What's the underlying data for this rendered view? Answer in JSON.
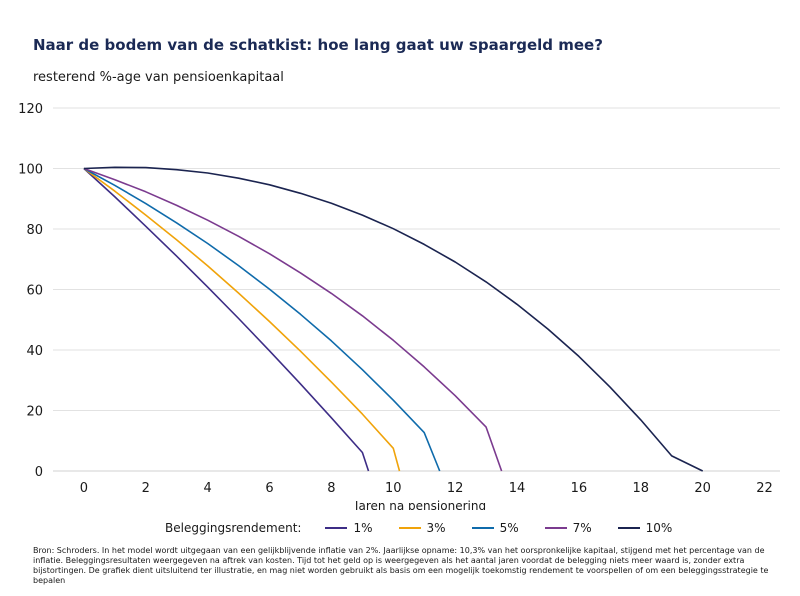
{
  "title": "Naar de bodem van de schatkist: hoe lang gaat uw spaargeld mee?",
  "subtitle": "resterend %-age van pensioenkapitaal",
  "legend_title": "Beleggingsrendement:",
  "source": "Bron: Schroders. In het model wordt uitgegaan van een gelijkblijvende inflatie van 2%. Jaarlijkse opname: 10,3% van het oorspronkelijke kapitaal, stijgend met het percentage van de inflatie. Beleggingsresultaten weergegeven na aftrek van kosten. Tijd tot het geld op is weergegeven als het aantal jaren voordat de belegging niets meer waard is, zonder extra bijstortingen. De grafiek dient uitsluitend ter illustratie, en mag niet worden gebruikt als basis om een mogelijk toekomstig rendement te voorspellen of om een beleggingsstrategie te bepalen",
  "chart_data": {
    "type": "line",
    "title": "Naar de bodem van de schatkist: hoe lang gaat uw spaargeld mee?",
    "ylabel": "resterend %-age van pensioenkapitaal",
    "xlabel": "Jaren na pensionering",
    "xlim": [
      -1,
      22.5
    ],
    "ylim": [
      0,
      120
    ],
    "xticks": [
      0,
      2,
      4,
      6,
      8,
      10,
      12,
      14,
      16,
      18,
      20,
      22
    ],
    "yticks": [
      0,
      20,
      40,
      60,
      80,
      100,
      120
    ],
    "grid": "horizontal",
    "legend_position": "bottom",
    "series": [
      {
        "name": "1%",
        "color": "#3d2d86",
        "x": [
          0,
          1,
          2,
          3,
          4,
          5,
          6,
          7,
          8,
          9,
          9.2
        ],
        "y": [
          100,
          90.6,
          80.9,
          71.0,
          60.8,
          50.4,
          39.7,
          28.8,
          17.6,
          6.1,
          0
        ]
      },
      {
        "name": "3%",
        "color": "#f0a30a",
        "x": [
          0,
          1,
          2,
          3,
          4,
          5,
          6,
          7,
          8,
          9,
          10,
          10.2
        ],
        "y": [
          100,
          92.5,
          84.6,
          76.4,
          67.8,
          58.8,
          49.4,
          39.6,
          29.4,
          18.8,
          7.5,
          0
        ]
      },
      {
        "name": "5%",
        "color": "#0f6bab",
        "x": [
          0,
          1,
          2,
          3,
          4,
          5,
          6,
          7,
          8,
          9,
          10,
          11,
          11.5
        ],
        "y": [
          100,
          94.4,
          88.4,
          82.0,
          75.2,
          67.9,
          60.1,
          51.8,
          43.0,
          33.5,
          23.4,
          12.7,
          0
        ]
      },
      {
        "name": "7%",
        "color": "#7b3b8f",
        "x": [
          0,
          1,
          2,
          3,
          4,
          5,
          6,
          7,
          8,
          9,
          10,
          11,
          12,
          13,
          13.5
        ],
        "y": [
          100,
          96.3,
          92.3,
          87.8,
          82.9,
          77.6,
          71.8,
          65.5,
          58.7,
          51.3,
          43.2,
          34.4,
          24.9,
          14.5,
          0
        ]
      },
      {
        "name": "10%",
        "color": "#1b2450",
        "x": [
          0,
          1,
          2,
          3,
          4,
          5,
          6,
          7,
          8,
          9,
          10,
          11,
          12,
          13,
          14,
          15,
          16,
          17,
          18,
          19,
          20
        ],
        "y": [
          100,
          100.4,
          100.3,
          99.6,
          98.5,
          96.8,
          94.6,
          91.8,
          88.5,
          84.6,
          80.1,
          74.9,
          69.1,
          62.5,
          55.1,
          46.9,
          37.9,
          27.8,
          16.9,
          5.0,
          0
        ]
      }
    ]
  }
}
